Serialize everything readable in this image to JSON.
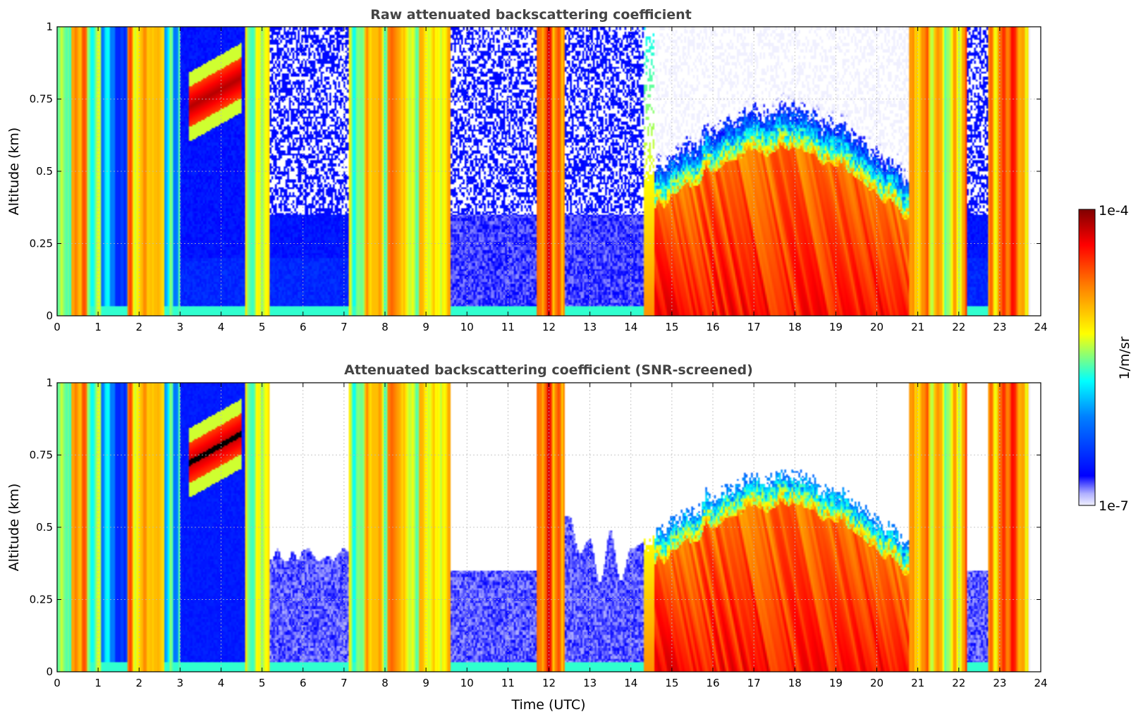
{
  "chart_data": [
    {
      "type": "heatmap",
      "title": "Raw attenuated backscattering coefficient",
      "xlabel": "",
      "ylabel": "Altitude (km)",
      "xlim": [
        0,
        24
      ],
      "ylim": [
        0,
        1
      ],
      "xticks": [
        "0",
        "1",
        "2",
        "3",
        "4",
        "5",
        "6",
        "7",
        "8",
        "9",
        "10",
        "11",
        "12",
        "13",
        "14",
        "15",
        "16",
        "17",
        "18",
        "19",
        "20",
        "21",
        "22",
        "23",
        "24"
      ],
      "yticks": [
        "0",
        "0.25",
        "0.5",
        "0.75",
        "1"
      ],
      "grid": true,
      "screened": false
    },
    {
      "type": "heatmap",
      "title": "Attenuated backscattering coefficient (SNR-screened)",
      "xlabel": "Time (UTC)",
      "ylabel": "Altitude (km)",
      "xlim": [
        0,
        24
      ],
      "ylim": [
        0,
        1
      ],
      "xticks": [
        "0",
        "1",
        "2",
        "3",
        "4",
        "5",
        "6",
        "7",
        "8",
        "9",
        "10",
        "11",
        "12",
        "13",
        "14",
        "15",
        "16",
        "17",
        "18",
        "19",
        "20",
        "21",
        "22",
        "23",
        "24"
      ],
      "yticks": [
        "0",
        "0.25",
        "0.5",
        "0.75",
        "1"
      ],
      "grid": true,
      "screened": true
    }
  ],
  "colorbar": {
    "label": "1/m/sr",
    "max_label": "1e-4",
    "min_label": "1e-7",
    "colormap": "jet"
  },
  "colors": {
    "title": "#444444",
    "grid": "#bbbbbb",
    "missing": "#ffffff"
  }
}
